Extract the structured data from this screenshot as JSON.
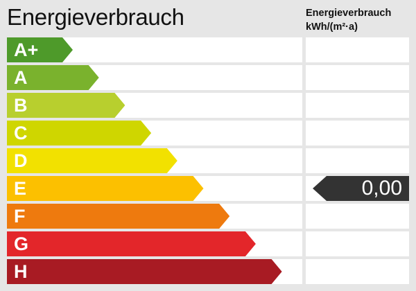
{
  "title": "Energieverbrauch",
  "column_header": {
    "line1": "Energieverbrauch",
    "line2": "kWh/(m²·a)"
  },
  "classes": [
    {
      "label": "A+",
      "color": "#4e9a2a"
    },
    {
      "label": "A",
      "color": "#7ab22d"
    },
    {
      "label": "B",
      "color": "#b8cf2e"
    },
    {
      "label": "C",
      "color": "#cfd600"
    },
    {
      "label": "D",
      "color": "#f2e100"
    },
    {
      "label": "E",
      "color": "#fcc000"
    },
    {
      "label": "F",
      "color": "#ee7a0e"
    },
    {
      "label": "G",
      "color": "#e3262a"
    },
    {
      "label": "H",
      "color": "#a81b23"
    }
  ],
  "value": {
    "text": "0,00",
    "class": "E",
    "color": "#333333"
  }
}
